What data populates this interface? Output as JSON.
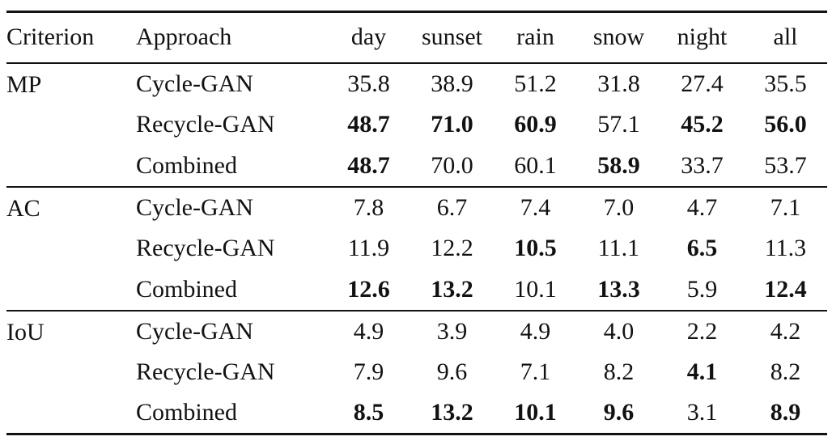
{
  "page": {
    "background": "#ffffff",
    "text_color": "#121212",
    "rule_color": "#121212"
  },
  "table": {
    "columns": [
      "Criterion",
      "Approach",
      "day",
      "sunset",
      "rain",
      "snow",
      "night",
      "all"
    ],
    "sections": [
      {
        "criterion": "MP",
        "rows": [
          {
            "approach": "Cycle-GAN",
            "values": [
              "35.8",
              "38.9",
              "51.2",
              "31.8",
              "27.4",
              "35.5"
            ],
            "bold": [
              false,
              false,
              false,
              false,
              false,
              false
            ]
          },
          {
            "approach": "Recycle-GAN",
            "values": [
              "48.7",
              "71.0",
              "60.9",
              "57.1",
              "45.2",
              "56.0"
            ],
            "bold": [
              true,
              true,
              true,
              false,
              true,
              true
            ]
          },
          {
            "approach": "Combined",
            "values": [
              "48.7",
              "70.0",
              "60.1",
              "58.9",
              "33.7",
              "53.7"
            ],
            "bold": [
              true,
              false,
              false,
              true,
              false,
              false
            ]
          }
        ]
      },
      {
        "criterion": "AC",
        "rows": [
          {
            "approach": "Cycle-GAN",
            "values": [
              "7.8",
              "6.7",
              "7.4",
              "7.0",
              "4.7",
              "7.1"
            ],
            "bold": [
              false,
              false,
              false,
              false,
              false,
              false
            ]
          },
          {
            "approach": "Recycle-GAN",
            "values": [
              "11.9",
              "12.2",
              "10.5",
              "11.1",
              "6.5",
              "11.3"
            ],
            "bold": [
              false,
              false,
              true,
              false,
              true,
              false
            ]
          },
          {
            "approach": "Combined",
            "values": [
              "12.6",
              "13.2",
              "10.1",
              "13.3",
              "5.9",
              "12.4"
            ],
            "bold": [
              true,
              true,
              false,
              true,
              false,
              true
            ]
          }
        ]
      },
      {
        "criterion": "IoU",
        "rows": [
          {
            "approach": "Cycle-GAN",
            "values": [
              "4.9",
              "3.9",
              "4.9",
              "4.0",
              "2.2",
              "4.2"
            ],
            "bold": [
              false,
              false,
              false,
              false,
              false,
              false
            ]
          },
          {
            "approach": "Recycle-GAN",
            "values": [
              "7.9",
              "9.6",
              "7.1",
              "8.2",
              "4.1",
              "8.2"
            ],
            "bold": [
              false,
              false,
              false,
              false,
              true,
              false
            ]
          },
          {
            "approach": "Combined",
            "values": [
              "8.5",
              "13.2",
              "10.1",
              "9.6",
              "3.1",
              "8.9"
            ],
            "bold": [
              true,
              true,
              true,
              true,
              false,
              true
            ]
          }
        ]
      }
    ]
  }
}
